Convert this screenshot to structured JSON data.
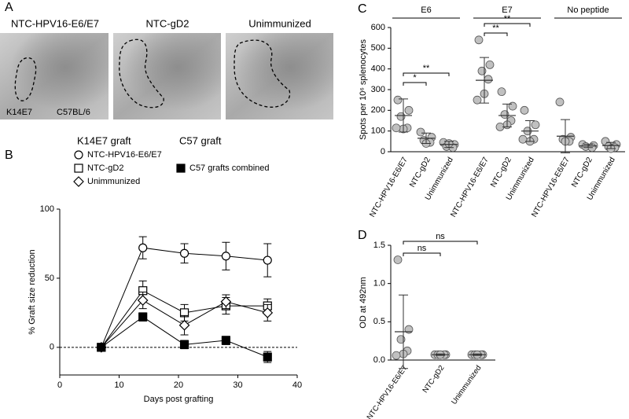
{
  "images": {
    "panel": "A",
    "titles": [
      "NTC-HPV16-E6/E7",
      "NTC-gD2",
      "Unimmunized"
    ],
    "annotations": [
      "K14E7",
      "C57BL/6"
    ]
  },
  "chart_data": [
    {
      "panel": "B",
      "type": "line",
      "x": [
        7,
        14,
        21,
        28,
        35
      ],
      "xlim": [
        0,
        40
      ],
      "xticks": [
        0,
        10,
        20,
        30,
        40
      ],
      "ylim": [
        -20,
        100
      ],
      "yticks": [
        0,
        50,
        100
      ],
      "xlabel": "Days post grafting",
      "ylabel": "% Graft size reduction",
      "reference_line": 0,
      "legend_titles": [
        "K14E7 graft",
        "C57 graft"
      ],
      "series": [
        {
          "name": "NTC-HPV16-E6/E7",
          "legend_group": 0,
          "marker": "circle",
          "color": "#000000",
          "fill": "#ffffff",
          "values": [
            0,
            72,
            68,
            66,
            63
          ],
          "errors": [
            0,
            8,
            7,
            10,
            12
          ]
        },
        {
          "name": "NTC-gD2",
          "legend_group": 0,
          "marker": "square",
          "color": "#000000",
          "fill": "#ffffff",
          "values": [
            0,
            41,
            25,
            30,
            30
          ],
          "errors": [
            0,
            7,
            6,
            6,
            5
          ]
        },
        {
          "name": "Unimmunized",
          "legend_group": 0,
          "marker": "diamond",
          "color": "#000000",
          "fill": "#ffffff",
          "values": [
            0,
            34,
            16,
            33,
            25
          ],
          "errors": [
            0,
            6,
            7,
            5,
            6
          ]
        },
        {
          "name": "C57 grafts combined",
          "legend_group": 1,
          "marker": "square",
          "color": "#000000",
          "fill": "#000000",
          "values": [
            0,
            22,
            2,
            5,
            -7
          ],
          "errors": [
            0,
            3,
            3,
            3,
            4
          ]
        }
      ]
    },
    {
      "panel": "C",
      "type": "dotplot",
      "groups": [
        "E6",
        "E7",
        "No peptide"
      ],
      "categories": [
        "NTC-HPV16-E6/E7",
        "NTC-gD2",
        "Unimmunized",
        "NTC-HPV16-E6/E7",
        "NTC-gD2",
        "Unimmunized",
        "NTC-HPV16-E6/E7",
        "NTC-gD2",
        "Unimmunized"
      ],
      "points": [
        [
          250,
          200,
          170,
          115,
          110,
          115
        ],
        [
          95,
          70,
          55,
          45,
          40
        ],
        [
          45,
          35,
          25,
          20,
          40
        ],
        [
          540,
          420,
          390,
          350,
          280,
          250
        ],
        [
          290,
          220,
          180,
          150,
          130,
          120
        ],
        [
          200,
          130,
          100,
          60,
          50,
          60
        ],
        [
          240,
          70,
          60,
          50,
          50
        ],
        [
          35,
          30,
          25,
          20
        ],
        [
          50,
          35,
          25,
          20,
          15
        ]
      ],
      "mean": [
        175,
        65,
        35,
        345,
        175,
        100,
        75,
        28,
        30
      ],
      "sd": [
        80,
        25,
        15,
        110,
        55,
        50,
        80,
        8,
        15
      ],
      "ylim": [
        0,
        600
      ],
      "yticks": [
        0,
        100,
        200,
        300,
        400,
        500,
        600
      ],
      "ylabel": "Spots per 10⁶ splenocytes",
      "color": "#c0c0c0",
      "brackets": [
        {
          "between": [
            0,
            2
          ],
          "label": "**"
        },
        {
          "between": [
            0,
            1
          ],
          "label": "*"
        },
        {
          "between": [
            3,
            5
          ],
          "label": "**"
        },
        {
          "between": [
            3,
            4
          ],
          "label": "**"
        }
      ]
    },
    {
      "panel": "D",
      "type": "dotplot",
      "categories": [
        "NTC-HPV16-E6/E7",
        "NTC-gD2",
        "Unimmunized"
      ],
      "points": [
        [
          1.31,
          0.4,
          0.27,
          0.12,
          0.08,
          0.06
        ],
        [
          0.07,
          0.07,
          0.07,
          0.07,
          0.07
        ],
        [
          0.07,
          0.07,
          0.07,
          0.07,
          0.07
        ]
      ],
      "mean": [
        0.37,
        0.07,
        0.07
      ],
      "sd": [
        0.48,
        0.01,
        0.01
      ],
      "ylim": [
        0,
        1.5
      ],
      "yticks": [
        {
          "value": 0,
          "label": "0.0"
        },
        0.5,
        {
          "value": 1,
          "label": "1.0"
        },
        1.5
      ],
      "ylabel": "OD at 492nm",
      "color": "#c0c0c0",
      "brackets": [
        {
          "between": [
            0,
            2
          ],
          "label": "ns"
        },
        {
          "between": [
            0,
            1
          ],
          "label": "ns"
        }
      ]
    }
  ]
}
